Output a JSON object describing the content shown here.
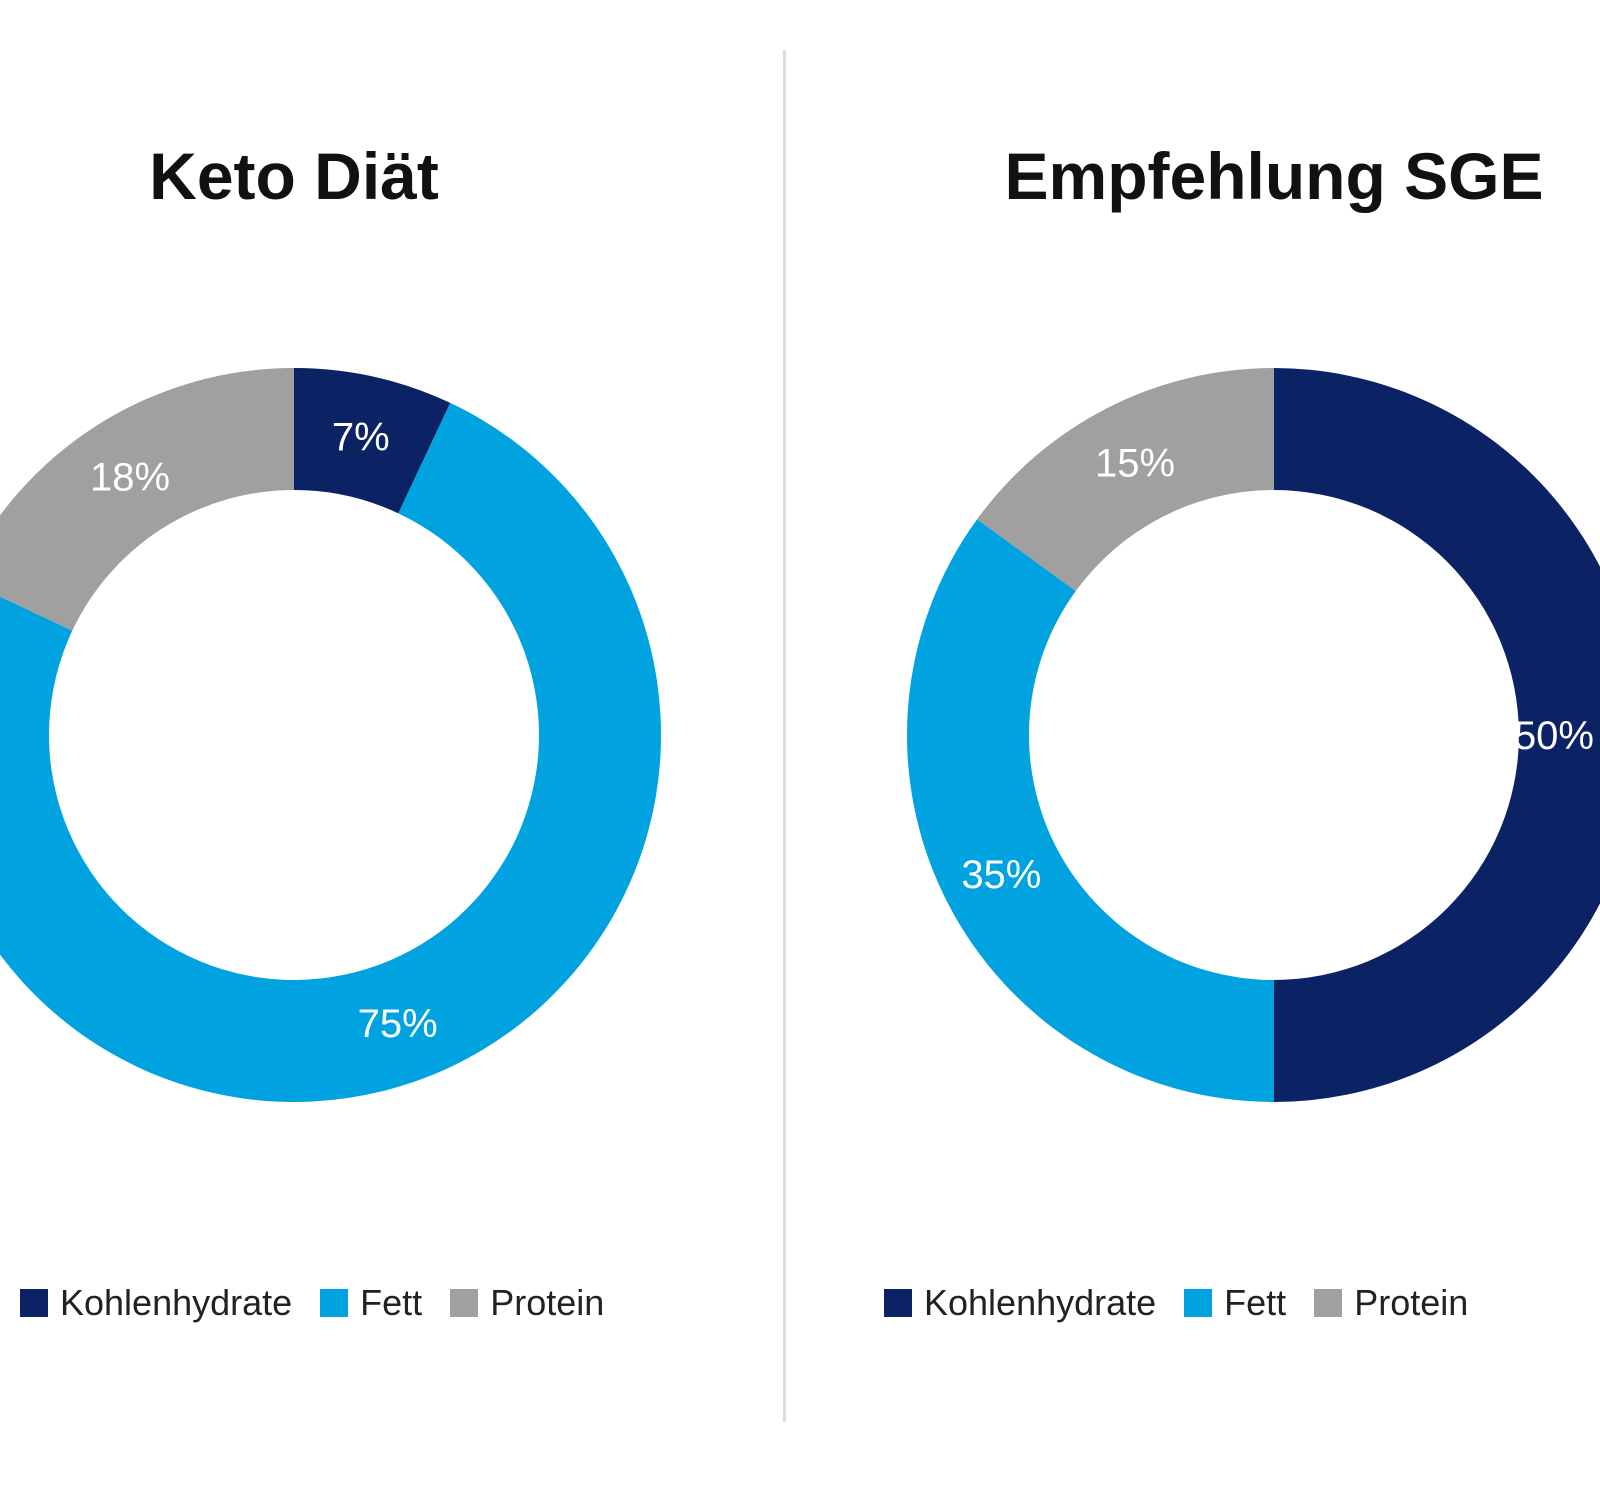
{
  "chart_data": [
    {
      "type": "pie",
      "title": "Keto Diät",
      "categories": [
        "Kohlenhydrate",
        "Fett",
        "Protein"
      ],
      "values": [
        7,
        75,
        18
      ],
      "labels": [
        "7%",
        "75%",
        "18%"
      ],
      "colors": [
        "#0b2265",
        "#00a3e0",
        "#a0a0a0"
      ],
      "legend": "bottom",
      "donut": true
    },
    {
      "type": "pie",
      "title": "Empfehlung SGE",
      "categories": [
        "Kohlenhydrate",
        "Fett",
        "Protein"
      ],
      "values": [
        50,
        35,
        15
      ],
      "labels": [
        "50%",
        "35%",
        "15%"
      ],
      "colors": [
        "#0b2265",
        "#00a3e0",
        "#a0a0a0"
      ],
      "legend": "bottom",
      "donut": true
    }
  ]
}
